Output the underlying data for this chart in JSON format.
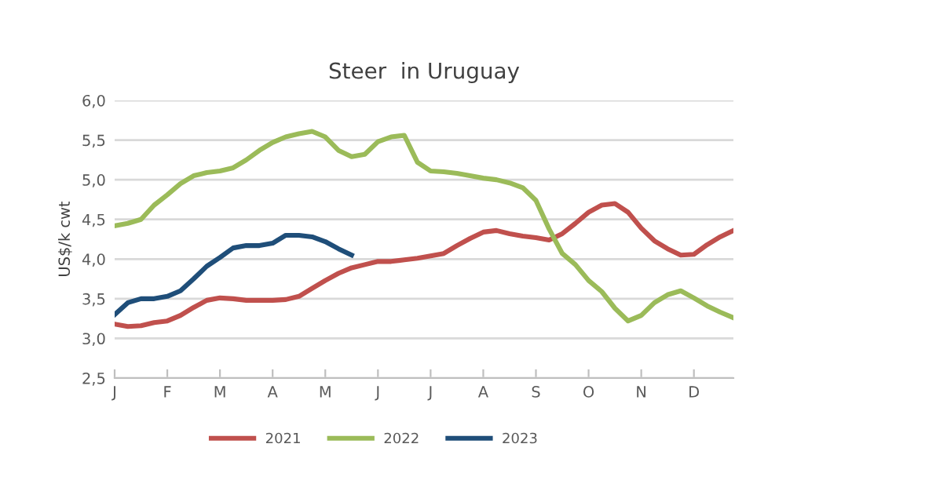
{
  "chart_data": {
    "type": "line",
    "title": "Steer  in Uruguay",
    "ylabel": "US$/k cwt",
    "categories": [
      "J",
      null,
      null,
      null,
      "F",
      null,
      null,
      null,
      "M",
      null,
      null,
      null,
      "A",
      null,
      null,
      null,
      "M",
      null,
      null,
      null,
      "J",
      null,
      null,
      null,
      "J",
      null,
      null,
      null,
      "A",
      null,
      null,
      null,
      "S",
      null,
      null,
      null,
      "O",
      null,
      null,
      null,
      "N",
      null,
      null,
      null,
      "D",
      null,
      null,
      null
    ],
    "ylim": [
      2.5,
      6.0
    ],
    "yticks": [
      {
        "value": 2.5,
        "label": "2,5"
      },
      {
        "value": 3.0,
        "label": "3,0"
      },
      {
        "value": 3.5,
        "label": "3,5"
      },
      {
        "value": 4.0,
        "label": "4,0"
      },
      {
        "value": 4.5,
        "label": "4,5"
      },
      {
        "value": 5.0,
        "label": "5,0"
      },
      {
        "value": 5.5,
        "label": "5,5"
      },
      {
        "value": 6.0,
        "label": "6,0"
      }
    ],
    "grid": "y",
    "legend": "bottom",
    "marker": "none",
    "line_style": "solid",
    "series": [
      {
        "name": "2021",
        "color": "#c0504d",
        "values": [
          3.18,
          3.15,
          3.16,
          3.2,
          3.22,
          3.29,
          3.39,
          3.48,
          3.51,
          3.5,
          3.48,
          3.48,
          3.48,
          3.49,
          3.53,
          3.63,
          3.73,
          3.82,
          3.89,
          3.93,
          3.97,
          3.97,
          3.99,
          4.01,
          4.04,
          4.07,
          4.17,
          4.26,
          4.34,
          4.36,
          4.32,
          4.29,
          4.27,
          4.24,
          4.32,
          4.45,
          4.59,
          4.68,
          4.7,
          4.59,
          4.39,
          4.23,
          4.13,
          4.05,
          4.06,
          4.18,
          4.28,
          4.36
        ]
      },
      {
        "name": "2022",
        "color": "#9bbb59",
        "values": [
          4.42,
          4.45,
          4.5,
          4.68,
          4.81,
          4.95,
          5.05,
          5.09,
          5.11,
          5.15,
          5.25,
          5.37,
          5.47,
          5.54,
          5.58,
          5.61,
          5.54,
          5.37,
          5.29,
          5.32,
          5.48,
          5.54,
          5.56,
          5.22,
          5.11,
          5.1,
          5.08,
          5.05,
          5.02,
          5.0,
          4.96,
          4.9,
          4.74,
          4.38,
          4.07,
          3.93,
          3.73,
          3.59,
          3.38,
          3.22,
          3.29,
          3.45,
          3.55,
          3.6,
          3.51,
          3.41,
          3.33,
          3.26
        ]
      },
      {
        "name": "2023",
        "color": "#1f4e79",
        "values": [
          3.3,
          3.45,
          3.5,
          3.5,
          3.53,
          3.6,
          3.75,
          3.91,
          4.02,
          4.14,
          4.17,
          4.17,
          4.2,
          4.3,
          4.3,
          4.28,
          4.22,
          4.13,
          4.05,
          null,
          null,
          null,
          null,
          null,
          null,
          null,
          null,
          null,
          null,
          null,
          null,
          null,
          null,
          null,
          null,
          null,
          null,
          null,
          null,
          null,
          null,
          null,
          null,
          null,
          null,
          null,
          null,
          null
        ]
      }
    ]
  }
}
